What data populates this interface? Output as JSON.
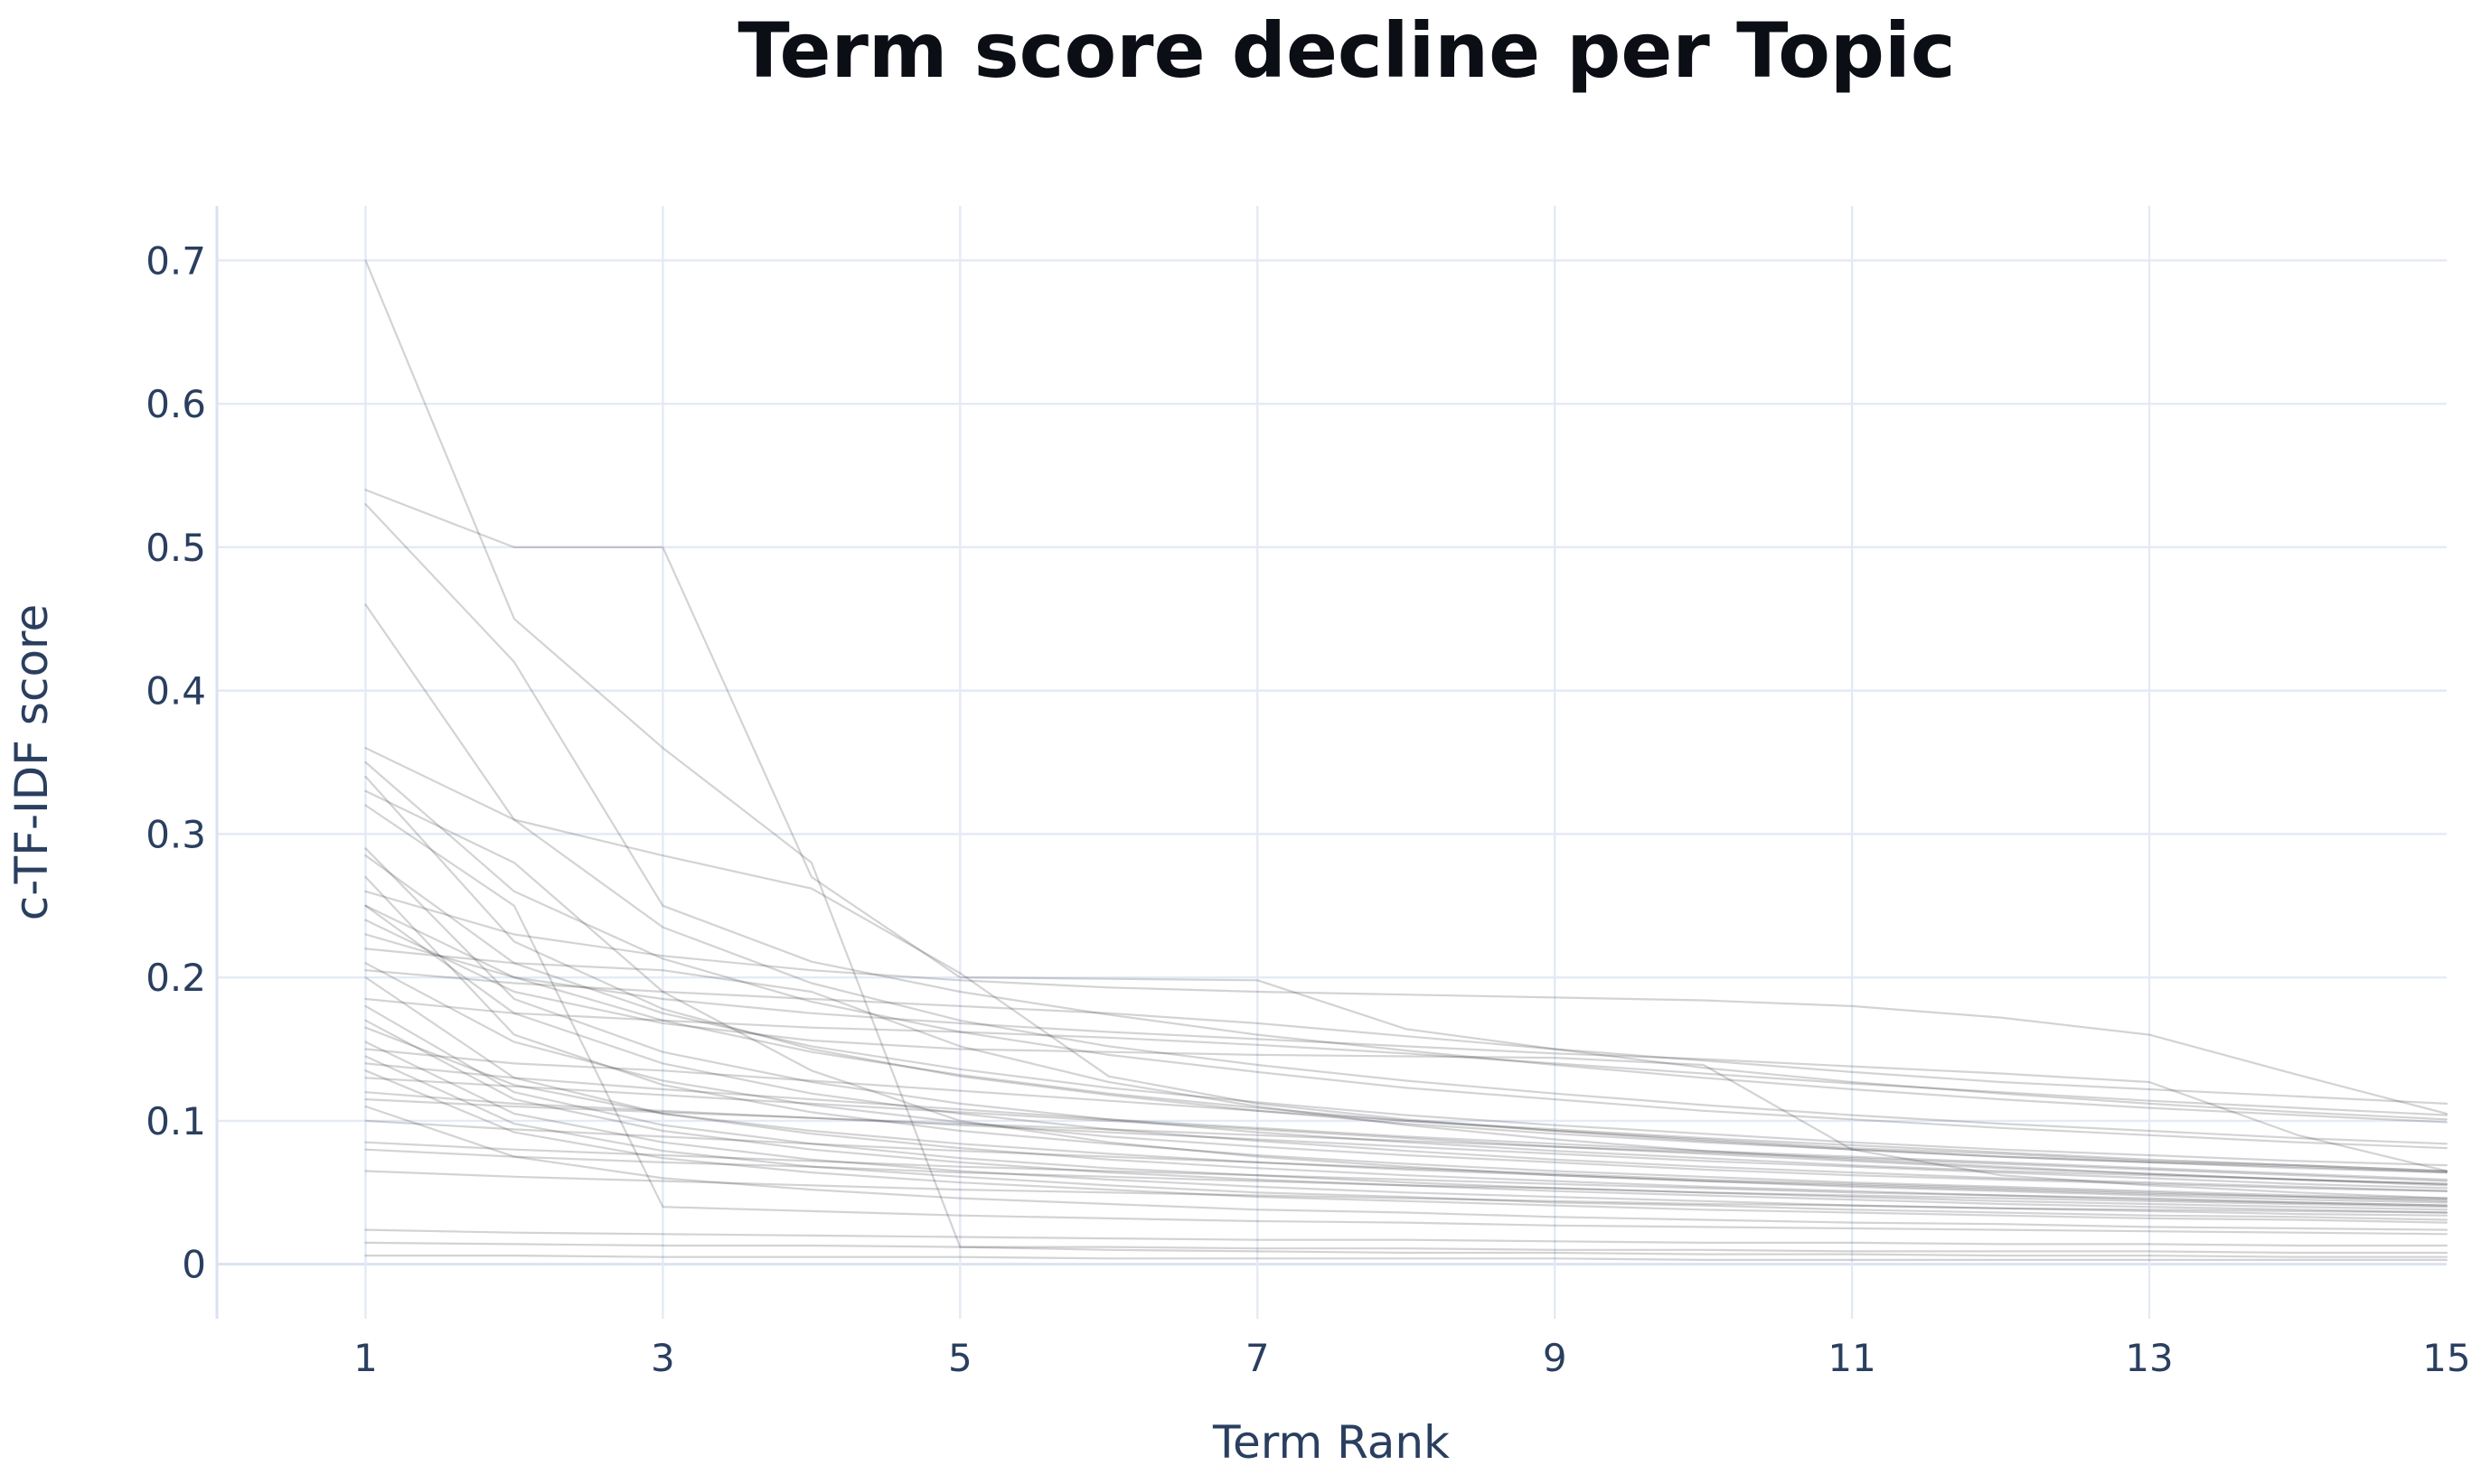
{
  "page": {
    "background_color": "#ffffff"
  },
  "chart_data": {
    "type": "line",
    "title": "Term score decline per Topic",
    "xlabel": "Term Rank",
    "ylabel": "c-TF-IDF score",
    "legend": "none",
    "grid": true,
    "x": [
      1,
      2,
      3,
      4,
      5,
      6,
      7,
      8,
      9,
      10,
      11,
      12,
      13,
      14,
      15
    ],
    "xticks": [
      1,
      3,
      5,
      7,
      9,
      11,
      13,
      15
    ],
    "xtick_labels": [
      "1",
      "3",
      "5",
      "7",
      "9",
      "11",
      "13",
      "15"
    ],
    "yticks": [
      0,
      0.1,
      0.2,
      0.3,
      0.4,
      0.5,
      0.6,
      0.7
    ],
    "ytick_labels": [
      "0",
      "0.1",
      "0.2",
      "0.3",
      "0.4",
      "0.5",
      "0.6",
      "0.7"
    ],
    "xlim": [
      0,
      15
    ],
    "ylim": [
      -0.038,
      0.738
    ],
    "colors": {
      "line": "rgba(55,55,62,0.22)",
      "grid": "#e4eaf5",
      "zero_line": "#dbe3f1",
      "axis_line": "#d8e2f1",
      "tick_label": "#2a3f5f",
      "title": "#0b0e14"
    },
    "series": [
      [
        0.7,
        0.45,
        0.36,
        0.28,
        0.012,
        0.01,
        0.009,
        0.008,
        0.008,
        0.007,
        0.007,
        0.006,
        0.006,
        0.005,
        0.005
      ],
      [
        0.54,
        0.5,
        0.5,
        0.27,
        0.2,
        0.199,
        0.198,
        0.164,
        0.15,
        0.137,
        0.127,
        0.119,
        0.112,
        0.106,
        0.101
      ],
      [
        0.53,
        0.42,
        0.25,
        0.211,
        0.19,
        0.174,
        0.16,
        0.149,
        0.139,
        0.13,
        0.122,
        0.115,
        0.109,
        0.104,
        0.099
      ],
      [
        0.46,
        0.31,
        0.235,
        0.196,
        0.17,
        0.152,
        0.139,
        0.128,
        0.119,
        0.111,
        0.104,
        0.098,
        0.093,
        0.088,
        0.084
      ],
      [
        0.36,
        0.31,
        0.285,
        0.262,
        0.203,
        0.131,
        0.112,
        0.101,
        0.093,
        0.086,
        0.08,
        0.075,
        0.071,
        0.067,
        0.064
      ],
      [
        0.35,
        0.26,
        0.213,
        0.183,
        0.162,
        0.146,
        0.134,
        0.123,
        0.115,
        0.107,
        0.101,
        0.095,
        0.09,
        0.085,
        0.081
      ],
      [
        0.34,
        0.225,
        0.178,
        0.15,
        0.131,
        0.118,
        0.107,
        0.098,
        0.091,
        0.085,
        0.08,
        0.075,
        0.071,
        0.068,
        0.064
      ],
      [
        0.33,
        0.28,
        0.19,
        0.135,
        0.1,
        0.085,
        0.075,
        0.068,
        0.062,
        0.058,
        0.054,
        0.051,
        0.048,
        0.045,
        0.043
      ],
      [
        0.32,
        0.25,
        0.04,
        0.037,
        0.034,
        0.032,
        0.03,
        0.029,
        0.027,
        0.026,
        0.025,
        0.024,
        0.023,
        0.022,
        0.021
      ],
      [
        0.29,
        0.185,
        0.148,
        0.127,
        0.112,
        0.101,
        0.092,
        0.085,
        0.079,
        0.074,
        0.069,
        0.065,
        0.062,
        0.059,
        0.056
      ],
      [
        0.285,
        0.21,
        0.175,
        0.152,
        0.136,
        0.123,
        0.113,
        0.104,
        0.097,
        0.091,
        0.085,
        0.08,
        0.076,
        0.072,
        0.069
      ],
      [
        0.27,
        0.16,
        0.125,
        0.106,
        0.093,
        0.084,
        0.076,
        0.07,
        0.065,
        0.061,
        0.057,
        0.054,
        0.051,
        0.048,
        0.046
      ],
      [
        0.26,
        0.23,
        0.215,
        0.205,
        0.198,
        0.193,
        0.19,
        0.188,
        0.186,
        0.184,
        0.18,
        0.172,
        0.16,
        0.132,
        0.105
      ],
      [
        0.25,
        0.2,
        0.17,
        0.148,
        0.132,
        0.119,
        0.109,
        0.1,
        0.093,
        0.087,
        0.081,
        0.077,
        0.072,
        0.069,
        0.065
      ],
      [
        0.25,
        0.175,
        0.14,
        0.119,
        0.105,
        0.094,
        0.086,
        0.079,
        0.073,
        0.068,
        0.064,
        0.06,
        0.057,
        0.054,
        0.051
      ],
      [
        0.24,
        0.19,
        0.168,
        0.156,
        0.15,
        0.148,
        0.146,
        0.145,
        0.144,
        0.139,
        0.08,
        0.062,
        0.055,
        0.05,
        0.046
      ],
      [
        0.23,
        0.2,
        0.185,
        0.175,
        0.168,
        0.162,
        0.157,
        0.152,
        0.147,
        0.143,
        0.138,
        0.133,
        0.127,
        0.09,
        0.065
      ],
      [
        0.22,
        0.21,
        0.205,
        0.19,
        0.152,
        0.127,
        0.11,
        0.097,
        0.087,
        0.079,
        0.073,
        0.068,
        0.063,
        0.059,
        0.056
      ],
      [
        0.21,
        0.155,
        0.128,
        0.111,
        0.099,
        0.089,
        0.082,
        0.076,
        0.071,
        0.066,
        0.062,
        0.059,
        0.056,
        0.053,
        0.051
      ],
      [
        0.205,
        0.196,
        0.19,
        0.185,
        0.18,
        0.175,
        0.168,
        0.159,
        0.15,
        0.142,
        0.134,
        0.127,
        0.122,
        0.117,
        0.112
      ],
      [
        0.2,
        0.13,
        0.105,
        0.091,
        0.081,
        0.073,
        0.067,
        0.062,
        0.058,
        0.054,
        0.051,
        0.048,
        0.046,
        0.043,
        0.041
      ],
      [
        0.185,
        0.175,
        0.17,
        0.165,
        0.162,
        0.158,
        0.153,
        0.147,
        0.14,
        0.133,
        0.126,
        0.12,
        0.114,
        0.109,
        0.104
      ],
      [
        0.18,
        0.12,
        0.097,
        0.084,
        0.074,
        0.067,
        0.062,
        0.057,
        0.053,
        0.05,
        0.047,
        0.044,
        0.042,
        0.04,
        0.038
      ],
      [
        0.17,
        0.115,
        0.093,
        0.08,
        0.071,
        0.064,
        0.059,
        0.055,
        0.051,
        0.048,
        0.045,
        0.042,
        0.04,
        0.038,
        0.036
      ],
      [
        0.165,
        0.125,
        0.105,
        0.093,
        0.084,
        0.077,
        0.071,
        0.066,
        0.062,
        0.058,
        0.055,
        0.052,
        0.049,
        0.047,
        0.045
      ],
      [
        0.155,
        0.105,
        0.085,
        0.073,
        0.065,
        0.059,
        0.054,
        0.05,
        0.047,
        0.044,
        0.041,
        0.039,
        0.037,
        0.035,
        0.034
      ],
      [
        0.15,
        0.14,
        0.135,
        0.128,
        0.121,
        0.114,
        0.107,
        0.1,
        0.094,
        0.088,
        0.083,
        0.078,
        0.073,
        0.069,
        0.065
      ],
      [
        0.145,
        0.098,
        0.079,
        0.068,
        0.061,
        0.055,
        0.05,
        0.047,
        0.043,
        0.041,
        0.038,
        0.036,
        0.034,
        0.033,
        0.031
      ],
      [
        0.14,
        0.13,
        0.122,
        0.115,
        0.108,
        0.101,
        0.095,
        0.089,
        0.084,
        0.079,
        0.075,
        0.071,
        0.067,
        0.063,
        0.059
      ],
      [
        0.135,
        0.092,
        0.074,
        0.064,
        0.057,
        0.052,
        0.047,
        0.044,
        0.041,
        0.038,
        0.036,
        0.034,
        0.032,
        0.031,
        0.029
      ],
      [
        0.13,
        0.124,
        0.118,
        0.112,
        0.106,
        0.1,
        0.094,
        0.088,
        0.082,
        0.077,
        0.072,
        0.067,
        0.063,
        0.059,
        0.055
      ],
      [
        0.12,
        0.112,
        0.107,
        0.102,
        0.097,
        0.092,
        0.087,
        0.082,
        0.077,
        0.072,
        0.068,
        0.064,
        0.06,
        0.056,
        0.053
      ],
      [
        0.115,
        0.11,
        0.106,
        0.102,
        0.098,
        0.094,
        0.09,
        0.086,
        0.082,
        0.078,
        0.074,
        0.07,
        0.066,
        0.062,
        0.058
      ],
      [
        0.11,
        0.075,
        0.06,
        0.052,
        0.046,
        0.042,
        0.038,
        0.036,
        0.033,
        0.031,
        0.029,
        0.028,
        0.026,
        0.025,
        0.024
      ],
      [
        0.1,
        0.094,
        0.089,
        0.084,
        0.079,
        0.075,
        0.071,
        0.067,
        0.063,
        0.059,
        0.056,
        0.053,
        0.05,
        0.047,
        0.044
      ],
      [
        0.085,
        0.08,
        0.076,
        0.072,
        0.068,
        0.065,
        0.062,
        0.059,
        0.056,
        0.053,
        0.05,
        0.048,
        0.045,
        0.043,
        0.041
      ],
      [
        0.08,
        0.075,
        0.071,
        0.068,
        0.064,
        0.061,
        0.058,
        0.055,
        0.053,
        0.05,
        0.048,
        0.046,
        0.044,
        0.042,
        0.04
      ],
      [
        0.065,
        0.061,
        0.058,
        0.055,
        0.052,
        0.05,
        0.048,
        0.046,
        0.044,
        0.042,
        0.041,
        0.039,
        0.038,
        0.037,
        0.036
      ],
      [
        0.024,
        0.022,
        0.021,
        0.02,
        0.019,
        0.018,
        0.017,
        0.017,
        0.016,
        0.015,
        0.015,
        0.014,
        0.014,
        0.013,
        0.013
      ],
      [
        0.015,
        0.014,
        0.013,
        0.013,
        0.012,
        0.012,
        0.011,
        0.011,
        0.01,
        0.01,
        0.009,
        0.009,
        0.009,
        0.008,
        0.008
      ],
      [
        0.006,
        0.006,
        0.005,
        0.005,
        0.005,
        0.004,
        0.004,
        0.004,
        0.004,
        0.003,
        0.003,
        0.003,
        0.003,
        0.003,
        0.003
      ]
    ]
  }
}
